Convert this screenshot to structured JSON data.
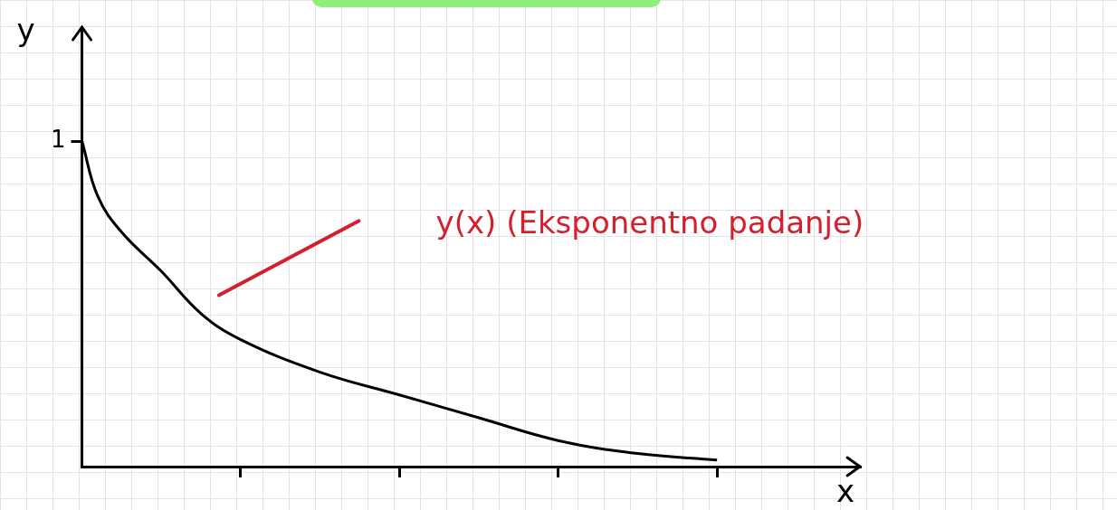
{
  "chart_data": {
    "type": "line",
    "x_label": "x",
    "y_label": "y",
    "annotations": [
      "y(x) (Eksponentno padanje)"
    ],
    "x": [
      0,
      0.1,
      0.25,
      0.5,
      0.75,
      1,
      1.5,
      2,
      2.5,
      3,
      3.5,
      4
    ],
    "values": [
      1,
      0.83,
      0.72,
      0.6,
      0.47,
      0.39,
      0.29,
      0.22,
      0.15,
      0.08,
      0.04,
      0.02
    ],
    "color": "#000000",
    "xlim": [
      0,
      4.9
    ],
    "ylim": [
      0,
      1.35
    ],
    "xticks": [
      1,
      2,
      3,
      4
    ],
    "yticks": [
      1
    ],
    "grid": false,
    "tick_labels": "y",
    "marker": "none",
    "line_style": "solid"
  }
}
